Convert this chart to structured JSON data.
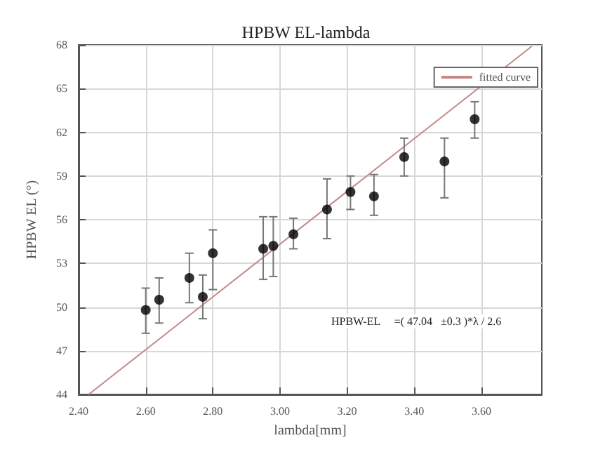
{
  "chart_data": {
    "type": "scatter",
    "title": "HPBW EL-lambda",
    "xlabel": "lambda[mm]",
    "ylabel": "HPBW EL (°)",
    "xlim": [
      2.4,
      3.78
    ],
    "xticks": [
      {
        "value": 2.4,
        "label": "2.40"
      },
      {
        "value": 2.6,
        "label": "2.60"
      },
      {
        "value": 2.8,
        "label": "2.80"
      },
      {
        "value": 3.0,
        "label": "3.00"
      },
      {
        "value": 3.2,
        "label": "3.20"
      },
      {
        "value": 3.4,
        "label": "3.40"
      },
      {
        "value": 3.6,
        "label": "3.60"
      }
    ],
    "ylim": [
      44,
      68
    ],
    "yticks": [
      44,
      47,
      50,
      53,
      56,
      59,
      62,
      65,
      68
    ],
    "grid": true,
    "legend": "top right",
    "marker": "circle",
    "series": [
      {
        "color": "#000000",
        "x": [
          2.6,
          2.64,
          2.73,
          2.77,
          2.8,
          2.95,
          2.98,
          3.04,
          3.14,
          3.21,
          3.28,
          3.37,
          3.49,
          3.58
        ],
        "values": [
          49.8,
          50.5,
          52.0,
          50.7,
          53.7,
          54.0,
          54.2,
          55.0,
          56.7,
          57.9,
          57.6,
          60.3,
          60.0,
          62.9
        ],
        "errors": [
          [
            48.2,
            51.3
          ],
          [
            48.9,
            52.0
          ],
          [
            50.3,
            53.7
          ],
          [
            49.2,
            52.2
          ],
          [
            51.2,
            55.3
          ],
          [
            51.9,
            56.2
          ],
          [
            52.1,
            56.2
          ],
          [
            54.0,
            56.1
          ],
          [
            54.7,
            58.8
          ],
          [
            56.7,
            59.0
          ],
          [
            56.3,
            59.1
          ],
          [
            59.0,
            61.6
          ],
          [
            57.5,
            61.6
          ],
          [
            61.6,
            64.1
          ]
        ]
      },
      {
        "type": "line",
        "name": "fitted curve",
        "color": "#c48a8a",
        "marker": "none",
        "x": [
          2.43,
          3.75
        ],
        "values": [
          44.0,
          67.9
        ]
      }
    ],
    "annotations": [
      "HPBW-EL     =( 47.04   ±0.3 )*λ / 2.6"
    ]
  }
}
